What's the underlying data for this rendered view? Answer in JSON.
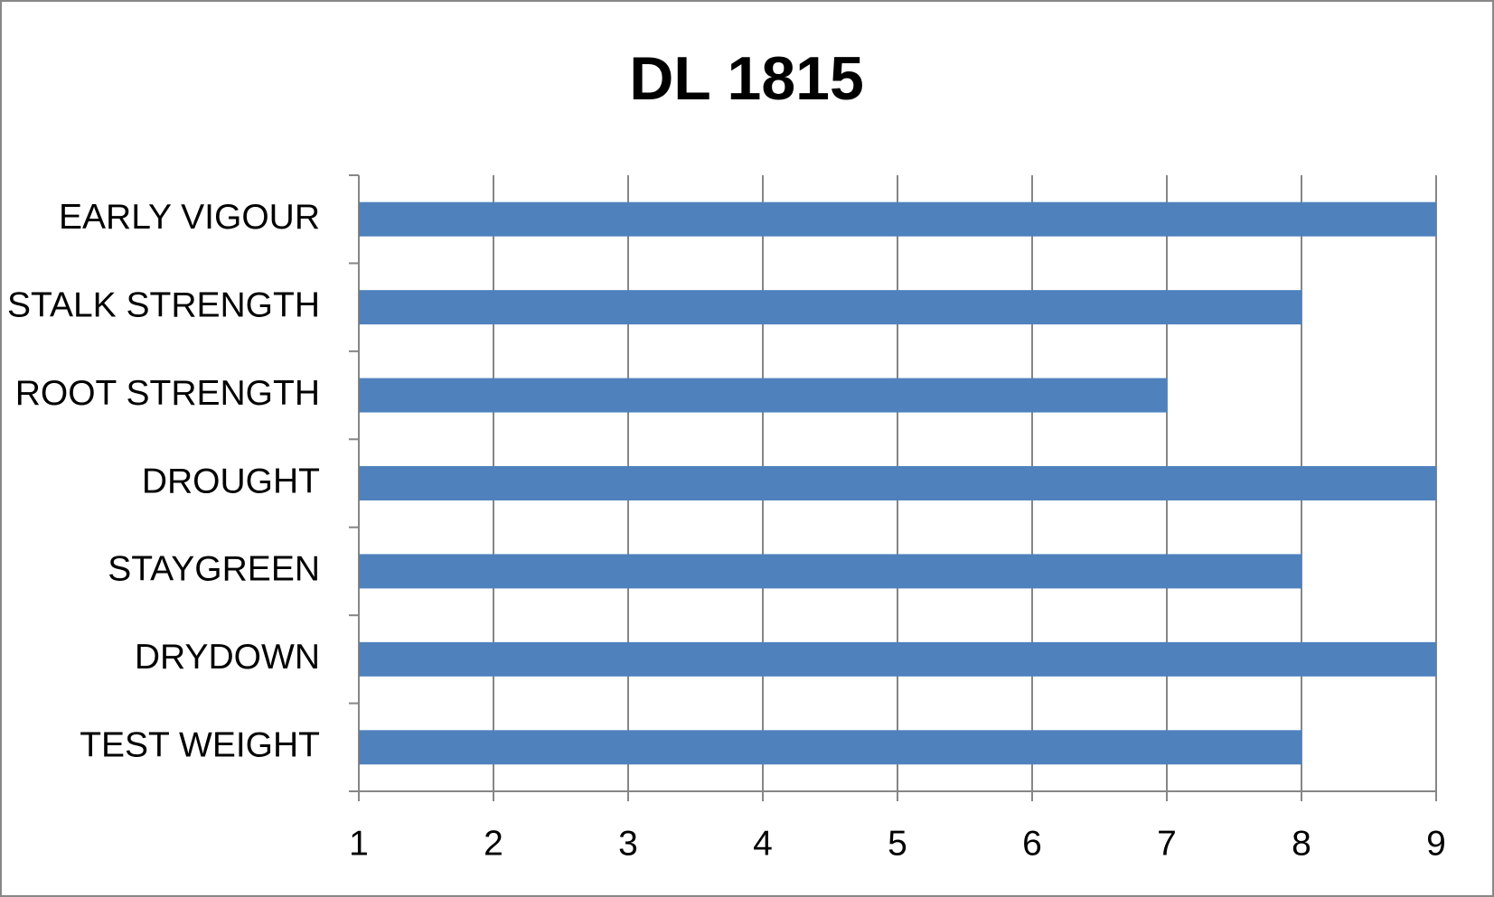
{
  "chart_data": {
    "type": "bar",
    "orientation": "horizontal",
    "title": "DL 1815",
    "categories": [
      "EARLY VIGOUR",
      "STALK STRENGTH",
      "ROOT STRENGTH",
      "DROUGHT",
      "STAYGREEN",
      "DRYDOWN",
      "TEST WEIGHT"
    ],
    "values": [
      9,
      8,
      7,
      9,
      8,
      9,
      8
    ],
    "color": "#4f81bd",
    "xlim": [
      1,
      9
    ],
    "xticks": [
      1,
      2,
      3,
      4,
      5,
      6,
      7,
      8,
      9
    ],
    "grid": true
  }
}
